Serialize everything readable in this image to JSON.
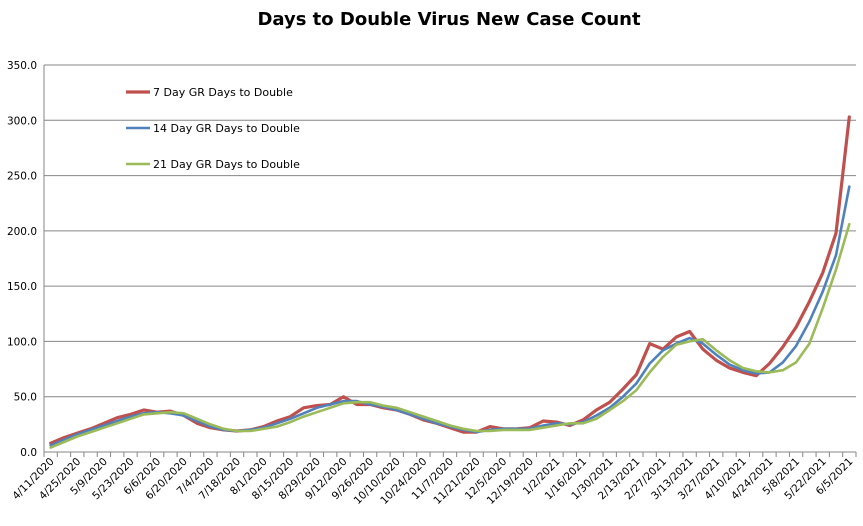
{
  "chart_data": {
    "type": "line",
    "title": "Days to Double Virus New Case Count",
    "xlabel": "",
    "ylabel": "",
    "ylim": [
      0,
      350
    ],
    "yticks": [
      "0.0",
      "50.0",
      "100.0",
      "150.0",
      "200.0",
      "250.0",
      "300.0",
      "350.0"
    ],
    "grid": true,
    "legend_position": "top-left (inside plot)",
    "start_date": "4/11/2020",
    "x_interval": "weekly",
    "x_tick_labels": [
      "4/11/2020",
      "4/25/2020",
      "5/9/2020",
      "5/23/2020",
      "6/6/2020",
      "6/20/2020",
      "7/4/2020",
      "7/18/2020",
      "8/1/2020",
      "8/15/2020",
      "8/29/2020",
      "9/12/2020",
      "9/26/2020",
      "10/10/2020",
      "10/24/2020",
      "11/7/2020",
      "11/21/2020",
      "12/5/2020",
      "12/19/2020",
      "1/2/2021",
      "1/16/2021",
      "1/30/2021",
      "2/13/2021",
      "2/27/2021",
      "3/13/2021",
      "3/27/2021",
      "4/10/2021",
      "4/24/2021",
      "5/8/2021",
      "5/22/2021",
      "6/5/2021"
    ],
    "series": [
      {
        "name": "7 Day GR Days to Double",
        "color": "#C0504D",
        "values": [
          8,
          13,
          17,
          21,
          26,
          31,
          34,
          38,
          36,
          37,
          33,
          26,
          22,
          20,
          19,
          20,
          23,
          28,
          32,
          40,
          42,
          43,
          50,
          43,
          43,
          40,
          38,
          34,
          29,
          26,
          22,
          18,
          18,
          23,
          21,
          21,
          22,
          28,
          27,
          24,
          29,
          38,
          45,
          57,
          70,
          98,
          93,
          104,
          109,
          93,
          83,
          76,
          72,
          69,
          80,
          95,
          113,
          136,
          162,
          198,
          303
        ]
      },
      {
        "name": "14 Day GR Days to Double",
        "color": "#4F81BD",
        "values": [
          6,
          11,
          16,
          20,
          24,
          28,
          32,
          35,
          36,
          35,
          33,
          28,
          23,
          20,
          19,
          20,
          22,
          26,
          30,
          35,
          40,
          43,
          46,
          46,
          43,
          41,
          38,
          34,
          30,
          26,
          23,
          20,
          18,
          20,
          21,
          21,
          21,
          24,
          26,
          25,
          27,
          33,
          40,
          50,
          62,
          80,
          92,
          98,
          103,
          98,
          88,
          79,
          74,
          71,
          72,
          81,
          96,
          118,
          145,
          178,
          240
        ]
      },
      {
        "name": "21 Day GR Days to Double",
        "color": "#9BBB59",
        "values": [
          4,
          9,
          14,
          18,
          22,
          26,
          30,
          34,
          35,
          36,
          35,
          30,
          25,
          21,
          19,
          19,
          21,
          23,
          27,
          32,
          36,
          40,
          44,
          45,
          45,
          42,
          40,
          36,
          32,
          28,
          24,
          21,
          19,
          19,
          20,
          20,
          20,
          22,
          24,
          26,
          26,
          30,
          38,
          46,
          56,
          72,
          86,
          97,
          100,
          102,
          92,
          83,
          76,
          73,
          72,
          74,
          81,
          98,
          130,
          165,
          206
        ]
      }
    ]
  }
}
